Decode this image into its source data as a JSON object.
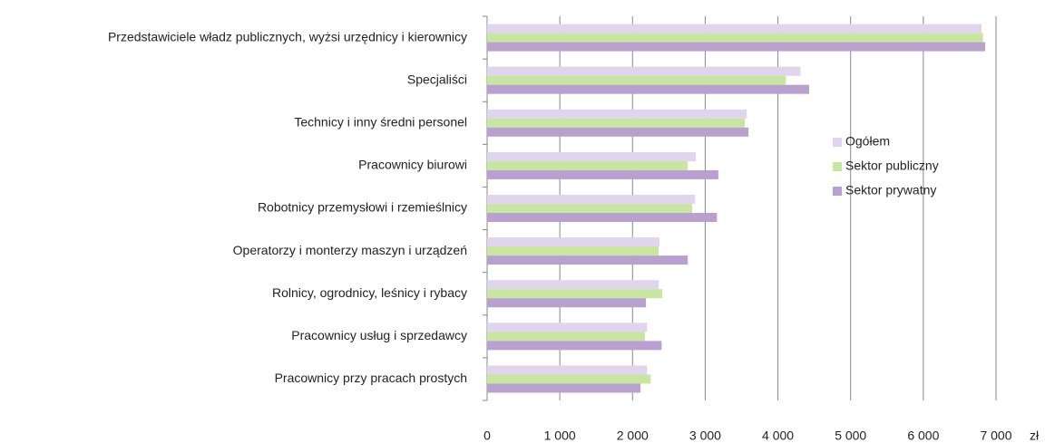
{
  "chart_data": {
    "type": "bar",
    "orientation": "horizontal",
    "categories": [
      "Przedstawiciele władz publicznych, wyżsi urzędnicy i kierownicy",
      "Specjaliści",
      "Technicy i inny średni personel",
      "Pracownicy biurowi",
      "Robotnicy przemysłowi i rzemieślnicy",
      "Operatorzy i monterzy maszyn i urządzeń",
      "Rolnicy, ogrodnicy, leśnicy i rybacy",
      "Pracownicy usług  i sprzedawcy",
      "Pracownicy przy pracach prostych"
    ],
    "series": [
      {
        "name": "Ogółem",
        "color": "#e0d4ee",
        "values": [
          6800,
          4310,
          3570,
          2870,
          2860,
          2370,
          2360,
          2200,
          2200
        ]
      },
      {
        "name": "Sektor publiczny",
        "color": "#c9e6a0",
        "values": [
          6820,
          4110,
          3545,
          2760,
          2820,
          2360,
          2410,
          2170,
          2250
        ]
      },
      {
        "name": "Sektor prywatny",
        "color": "#b8a0cf",
        "values": [
          6850,
          4430,
          3595,
          3180,
          3160,
          2760,
          2185,
          2400,
          2110
        ]
      }
    ],
    "xlim": [
      0,
      7000
    ],
    "xticks": [
      0,
      {
        "value": 1000,
        "label": "1 000"
      },
      {
        "value": 2000,
        "label": "2 000"
      },
      {
        "value": 3000,
        "label": "3 000"
      },
      {
        "value": 4000,
        "label": "4 000"
      },
      {
        "value": 5000,
        "label": "5 000"
      },
      {
        "value": 6000,
        "label": "6 000"
      },
      {
        "value": 7000,
        "label": "7 000"
      }
    ],
    "x_unit": "zł",
    "grid": true,
    "legend": "right"
  }
}
